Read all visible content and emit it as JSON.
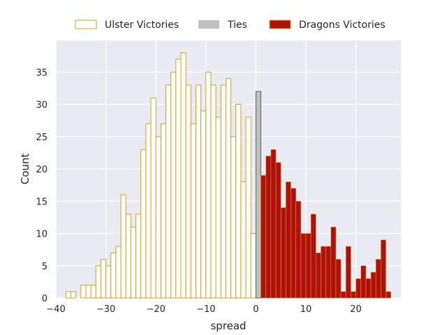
{
  "chart_data": {
    "type": "bar",
    "subtype": "histogram",
    "xlabel": "spread",
    "ylabel": "Count",
    "xlim": [
      -40,
      29
    ],
    "ylim": [
      0,
      39.9
    ],
    "xticks": [
      -40,
      -30,
      -20,
      -10,
      0,
      10,
      20
    ],
    "yticks": [
      0,
      5,
      10,
      15,
      20,
      25,
      30,
      35
    ],
    "grid": true,
    "legend": {
      "placement": "top-center",
      "entries": [
        "Ulster Victories",
        "Ties",
        "Dragons Victories"
      ]
    },
    "series": [
      {
        "name": "Ulster Victories",
        "style": "outline",
        "edge_color": "#d4a017",
        "x": [
          -38,
          -37,
          -36,
          -35,
          -34,
          -33,
          -32,
          -31,
          -30,
          -29,
          -28,
          -27,
          -26,
          -25,
          -24,
          -23,
          -22,
          -21,
          -20,
          -19,
          -18,
          -17,
          -16,
          -15,
          -14,
          -13,
          -12,
          -11,
          -10,
          -9,
          -8,
          -7,
          -6,
          -5,
          -4,
          -3,
          -2,
          -1
        ],
        "values": [
          1,
          1,
          0,
          2,
          2,
          2,
          5,
          6,
          5,
          7,
          8,
          16,
          13,
          11,
          13,
          23,
          27,
          31,
          25,
          27,
          33,
          35,
          37,
          38,
          33,
          27,
          33,
          29,
          35,
          33,
          28,
          33,
          34,
          25,
          30,
          18,
          28,
          10
        ]
      },
      {
        "name": "Ties",
        "style": "filled",
        "color": "#c0c0c0",
        "x": [
          0
        ],
        "values": [
          32
        ]
      },
      {
        "name": "Dragons Victories",
        "style": "filled",
        "color": "#b01010",
        "edge_color": "#d4a017",
        "x": [
          1,
          2,
          3,
          4,
          5,
          6,
          7,
          8,
          9,
          10,
          11,
          12,
          13,
          14,
          15,
          16,
          17,
          18,
          19,
          20,
          21,
          22,
          23,
          24,
          25,
          26
        ],
        "values": [
          19,
          22,
          23,
          21,
          14,
          18,
          17,
          15,
          10,
          10,
          13,
          7,
          8,
          8,
          11,
          6,
          1,
          8,
          1,
          3,
          5,
          3,
          4,
          6,
          9,
          1
        ]
      }
    ],
    "colors": {
      "background": "#eaeaf2",
      "grid": "#ffffff",
      "outline": "#d4a017",
      "ties": "#c0c0c0",
      "dragons": "#b01010"
    }
  }
}
